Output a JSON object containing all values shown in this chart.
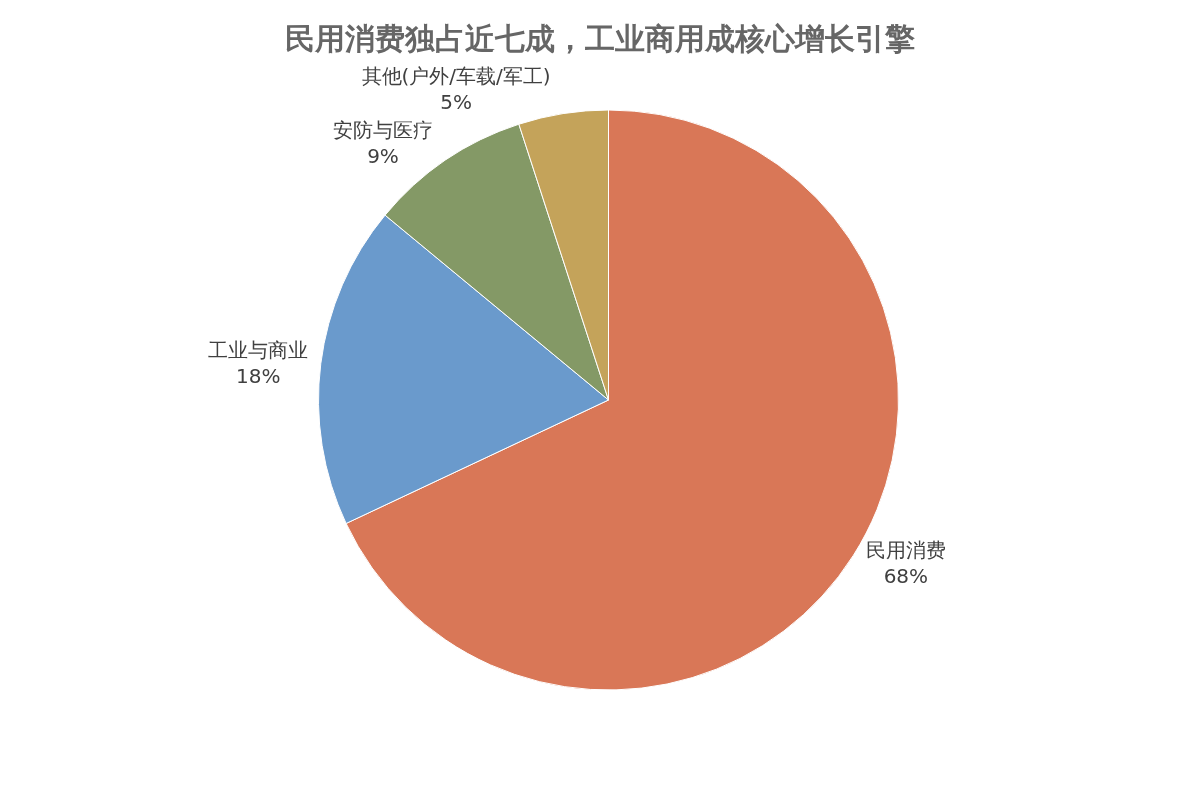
{
  "chart_data": {
    "type": "pie",
    "title": "民用消费独占近七成，工业商用成核心增长引擎",
    "categories": [
      "民用消费",
      "工业与商业",
      "安防与医疗",
      "其他(户外/车载/军工)"
    ],
    "values": [
      68,
      18,
      9,
      5
    ],
    "value_labels": [
      "68%",
      "18%",
      "9%",
      "5%"
    ],
    "colors": [
      "#d97757",
      "#6a9acc",
      "#849966",
      "#c4a35a"
    ],
    "legend": false
  }
}
